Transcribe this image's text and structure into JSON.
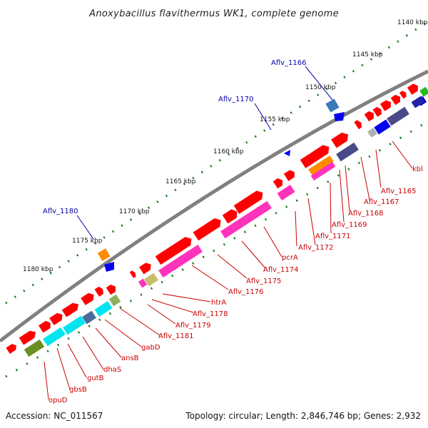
{
  "title": "Anoxybacillus flavithermus WK1, complete genome",
  "footer": {
    "accession": "Accession: NC_011567",
    "summary": "Topology: circular; Length: 2,846,746 bp; Genes: 2,932"
  },
  "colors": {
    "backbone": "#808080",
    "forward_gene": "#ff0000",
    "tick": "#1a7a1a",
    "label": "#cc0000",
    "callout": "#0000aa"
  },
  "ticks": [
    {
      "label": "1140 kbp"
    },
    {
      "label": "1145 kbp"
    },
    {
      "label": "1150 kbp"
    },
    {
      "label": "1155 kbp"
    },
    {
      "label": "1160 kbp"
    },
    {
      "label": "1165 kbp"
    },
    {
      "label": "1170 kbp"
    },
    {
      "label": "1175 kbp"
    },
    {
      "label": "1180 kbp"
    }
  ],
  "callouts": [
    {
      "label": "Aflv_1166"
    },
    {
      "label": "Aflv_1170"
    },
    {
      "label": "Aflv_1180"
    }
  ],
  "gene_labels": [
    {
      "label": "kbl"
    },
    {
      "label": "Aflv_1165"
    },
    {
      "label": "Aflv_1167"
    },
    {
      "label": "Aflv_1168"
    },
    {
      "label": "Aflv_1169"
    },
    {
      "label": "Aflv_1171"
    },
    {
      "label": "Aflv_1172"
    },
    {
      "label": "pcrA"
    },
    {
      "label": "Aflv_1174"
    },
    {
      "label": "Aflv_1175"
    },
    {
      "label": "Aflv_1176"
    },
    {
      "label": "htrA"
    },
    {
      "label": "Aflv_1178"
    },
    {
      "label": "Aflv_1179"
    },
    {
      "label": "Aflv_1181"
    },
    {
      "label": "gabD"
    },
    {
      "label": "ansB"
    },
    {
      "label": "dhaS"
    },
    {
      "label": "gutB"
    },
    {
      "label": "gbsB"
    },
    {
      "label": "opuD"
    }
  ]
}
